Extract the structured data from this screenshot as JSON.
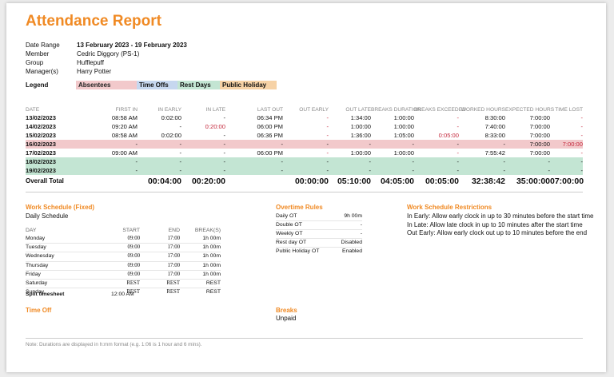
{
  "title": "Attendance Report",
  "meta": [
    {
      "key": "Date Range",
      "value": "13 February 2023 - 19 February 2023",
      "bold": true
    },
    {
      "key": "Member",
      "value": "Cedric Diggory (PS-1)",
      "bold": false
    },
    {
      "key": "Group",
      "value": "Hufflepuff",
      "bold": false
    },
    {
      "key": "Manager(s)",
      "value": "Harry Potter",
      "bold": false
    }
  ],
  "legend": {
    "label": "Legend",
    "items": [
      "Absentees",
      "Time Offs",
      "Rest Days",
      "Public Holiday"
    ],
    "colors": {
      "absentees": "#f2c9cb",
      "time_offs": "#c6d7ef",
      "rest_days": "#c3e5d3",
      "public_holiday": "#f6d2a6"
    }
  },
  "attendance": {
    "headers": [
      "DATE",
      "FIRST IN",
      "IN EARLY",
      "IN LATE",
      "LAST OUT",
      "OUT EARLY",
      "OUT LATE",
      "BREAKS DURATION",
      "BREAKS EXCEEDED",
      "WORKED HOURS",
      "EXPECTED HOURS",
      "TIME LOST"
    ],
    "rows": [
      {
        "type": "normal",
        "cells": [
          "13/02/2023",
          "08:58 AM",
          "0:02:00",
          "-",
          "06:34 PM",
          "-",
          "1:34:00",
          "1:00:00",
          "-",
          "8:30:00",
          "7:00:00",
          "-"
        ]
      },
      {
        "type": "normal",
        "cells": [
          "14/02/2023",
          "09:20 AM",
          "-",
          "0:20:00",
          "06:00 PM",
          "-",
          "1:00:00",
          "1:00:00",
          "-",
          "7:40:00",
          "7:00:00",
          "-"
        ]
      },
      {
        "type": "normal",
        "cells": [
          "15/02/2023",
          "08:58 AM",
          "0:02:00",
          "-",
          "06:36 PM",
          "-",
          "1:36:00",
          "1:05:00",
          "0:05:00",
          "8:33:00",
          "7:00:00",
          "-"
        ]
      },
      {
        "type": "absent",
        "cells": [
          "16/02/2023",
          "-",
          "-",
          "-",
          "-",
          "-",
          "-",
          "-",
          "-",
          "-",
          "7:00:00",
          "7:00:00"
        ]
      },
      {
        "type": "normal",
        "cells": [
          "17/02/2023",
          "09:00 AM",
          "-",
          "-",
          "06:00 PM",
          "-",
          "1:00:00",
          "1:00:00",
          "-",
          "7:55:42",
          "7:00:00",
          "-"
        ]
      },
      {
        "type": "rest",
        "cells": [
          "18/02/2023",
          "-",
          "-",
          "-",
          "-",
          "-",
          "-",
          "-",
          "-",
          "-",
          "-",
          "-"
        ]
      },
      {
        "type": "rest",
        "cells": [
          "19/02/2023",
          "-",
          "-",
          "-",
          "-",
          "-",
          "-",
          "-",
          "-",
          "-",
          "-",
          "-"
        ]
      }
    ],
    "total": [
      "Overall Total",
      "",
      "00:04:00",
      "00:20:00",
      "",
      "00:00:00",
      "05:10:00",
      "04:05:00",
      "00:05:00",
      "32:38:42",
      "35:00:00",
      "07:00:00"
    ],
    "accent_red": "#c4283c"
  },
  "work_schedule": {
    "title": "Work Schedule (Fixed)",
    "subtitle": "Daily Schedule",
    "headers": [
      "DAY",
      "START",
      "END",
      "BREAK(S)"
    ],
    "rows": [
      [
        "Monday",
        "09:00",
        "17:00",
        "1h 00m"
      ],
      [
        "Tuesday",
        "09:00",
        "17:00",
        "1h 00m"
      ],
      [
        "Wednesday",
        "09:00",
        "17:00",
        "1h 00m"
      ],
      [
        "Thursday",
        "09:00",
        "17:00",
        "1h 00m"
      ],
      [
        "Friday",
        "09:00",
        "17:00",
        "1h 00m"
      ],
      [
        "Saturday",
        "REST",
        "REST",
        "REST"
      ],
      [
        "Sunday",
        "REST",
        "REST",
        "REST"
      ]
    ],
    "split_label": "Split timesheet",
    "split_value": "12:00 AM"
  },
  "overtime": {
    "title": "Overtime Rules",
    "rows": [
      [
        "Daily OT",
        "9h 00m"
      ],
      [
        "Double OT",
        "-"
      ],
      [
        "Weekly OT",
        "-"
      ],
      [
        "Rest day OT",
        "Disabled"
      ],
      [
        "Public Holiday OT",
        "Enabled"
      ]
    ]
  },
  "restrictions": {
    "title": "Work Schedule Restrictions",
    "lines": [
      "In Early: Allow early clock in up to 30 minutes before the start time",
      "In Late: Allow late clock in up to 10 minutes after the start time",
      "Out Early: Allow early clock out up to 10 minutes before the end"
    ]
  },
  "time_off": {
    "title": "Time Off"
  },
  "breaks": {
    "title": "Breaks",
    "value": "Unpaid"
  },
  "note": "Note: Durations are displayed in h:mm format (e.g. 1:06 is 1 hour and 6 mins).",
  "accent": "#f08a24"
}
